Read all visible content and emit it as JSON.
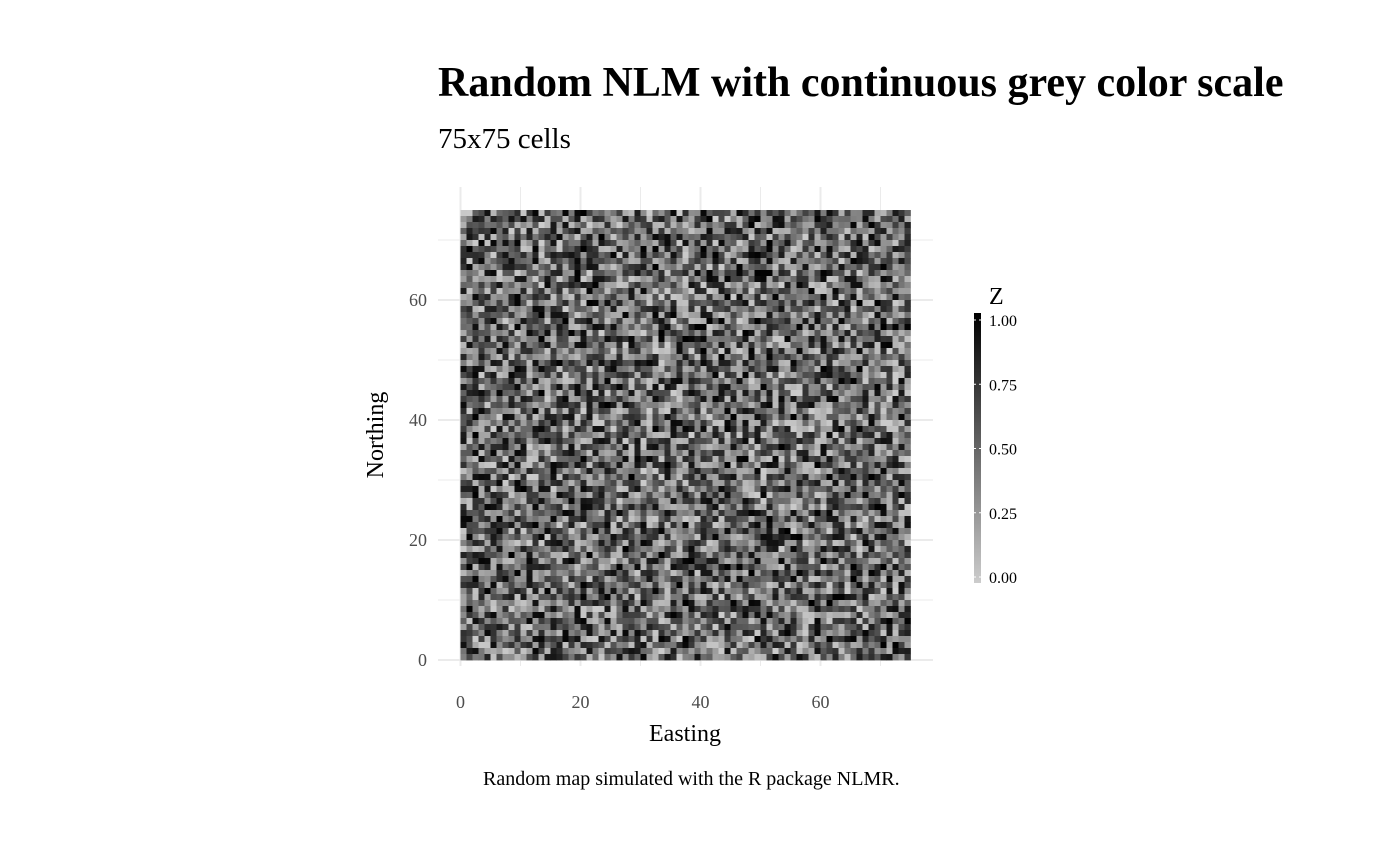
{
  "chart_data": {
    "type": "heatmap",
    "title": "Random NLM with continuous grey color scale",
    "subtitle": "75x75 cells",
    "caption": "Random map simulated with the R package NLMR.",
    "xlabel": "Easting",
    "ylabel": "Northing",
    "xlim": [
      0,
      75
    ],
    "ylim": [
      0,
      75
    ],
    "xticks": [
      "0",
      "20",
      "40",
      "60"
    ],
    "yticks": [
      "0",
      "20",
      "40",
      "60"
    ],
    "grid": true,
    "rows": 75,
    "cols": 75,
    "value_range": [
      0,
      1
    ],
    "colors": {
      "low": "#cccccc",
      "high": "#000000",
      "grid": "#ebebeb"
    },
    "legend": {
      "title": "Z",
      "position": "right",
      "labels": [
        "1.00",
        "0.75",
        "0.50",
        "0.25",
        "0.00"
      ],
      "values": [
        1.0,
        0.75,
        0.5,
        0.25,
        0.0
      ]
    }
  }
}
